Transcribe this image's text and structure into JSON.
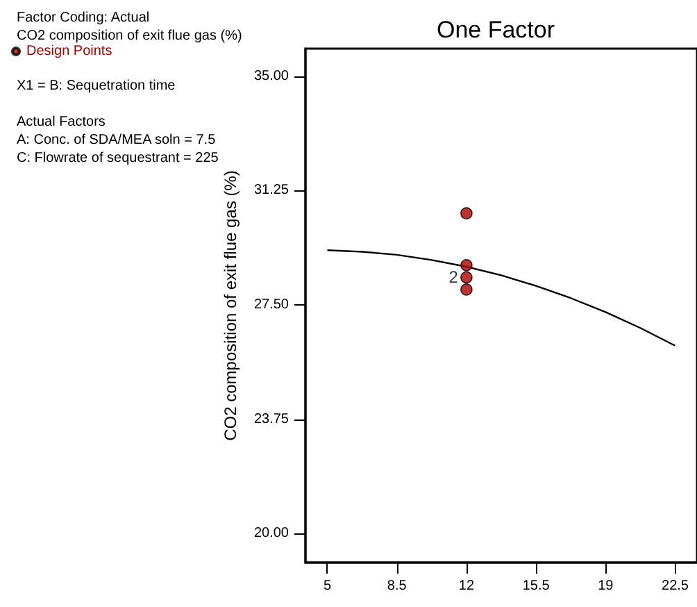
{
  "chart_data": {
    "type": "scatter",
    "title": "One Factor",
    "ylabel": "CO2 composition of exit flue gas (%)",
    "annotations": [
      "Factor Coding: Actual",
      "CO2 composition of exit flue gas (%)",
      "X1 = B: Sequetration time",
      "Actual Factors",
      "A: Conc. of SDA/MEA soln = 7.5",
      "C: Flowrate of sequestrant = 225",
      {
        "text": "2",
        "x": 12,
        "y": 28.4
      }
    ],
    "series": [
      {
        "type": "line",
        "color": "#000000",
        "marker": "none",
        "x": [
          5,
          6.75,
          8.5,
          10.25,
          12,
          13.75,
          15.5,
          17.25,
          19,
          20.75,
          22.5
        ],
        "values": [
          29.29,
          29.24,
          29.14,
          28.97,
          28.75,
          28.47,
          28.12,
          27.72,
          27.26,
          26.74,
          26.16
        ]
      },
      {
        "name": "Design Points",
        "color": "#b00000",
        "marker": "circle",
        "x": [
          12,
          12,
          12,
          12
        ],
        "values": [
          30.5,
          28.8,
          28.4,
          28.0
        ]
      }
    ],
    "xlim": [
      3.9,
      23.6
    ],
    "xticks": [
      5,
      8.5,
      12,
      15.5,
      19,
      22.5
    ],
    "ylim": [
      19.05,
      35.9
    ],
    "yticks": [
      {
        "value": 20,
        "label": "20.00"
      },
      {
        "value": 23.75,
        "label": "23.75"
      },
      {
        "value": 27.5,
        "label": "27.50"
      },
      {
        "value": 31.25,
        "label": "31.25"
      },
      {
        "value": 35,
        "label": "35.00"
      }
    ],
    "grid": false,
    "legend": "top left"
  }
}
